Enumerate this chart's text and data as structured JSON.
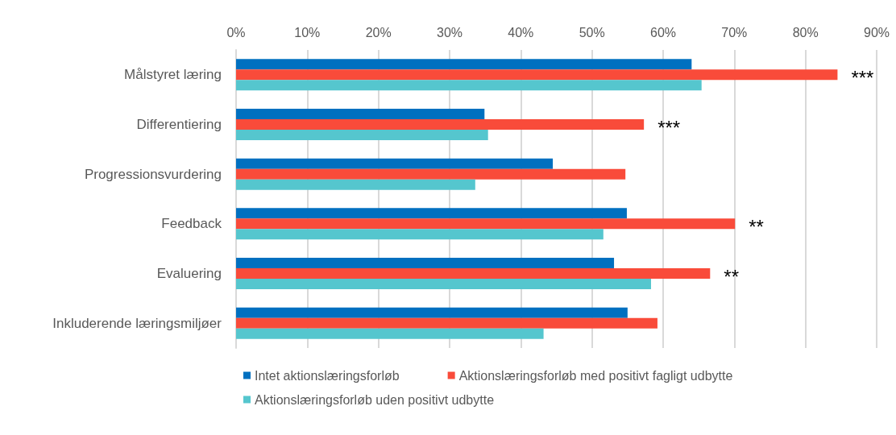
{
  "chart_data": {
    "type": "bar",
    "orientation": "horizontal",
    "categories": [
      "Målstyret læring",
      "Differentiering",
      "Progressionsvurdering",
      "Feedback",
      "Evaluering",
      "Inkluderende læringsmiljøer"
    ],
    "series": [
      {
        "name": "Intet aktionslæringsforløb",
        "color": "#0070c0",
        "values": [
          64,
          34.9,
          44.5,
          54.9,
          53.1,
          55.0
        ]
      },
      {
        "name": "Aktionslæringsforløb med positivt fagligt udbytte",
        "color": "#f94b3a",
        "values": [
          84.5,
          57.3,
          54.7,
          70.1,
          66.6,
          59.2
        ]
      },
      {
        "name": "Aktionslæringsforløb uden positivt udbytte",
        "color": "#55c6ce",
        "values": [
          65.4,
          35.4,
          33.6,
          51.6,
          58.3,
          43.2
        ]
      }
    ],
    "xlim": [
      0,
      90
    ],
    "xticks": [
      {
        "value": 0,
        "label": "0%"
      },
      {
        "value": 10,
        "label": "10%"
      },
      {
        "value": 20,
        "label": "20%"
      },
      {
        "value": 30,
        "label": "30%"
      },
      {
        "value": 40,
        "label": "40%"
      },
      {
        "value": 50,
        "label": "50%"
      },
      {
        "value": 60,
        "label": "60%"
      },
      {
        "value": 70,
        "label": "70%"
      },
      {
        "value": 80,
        "label": "80%"
      },
      {
        "value": 90,
        "label": "90%"
      }
    ],
    "grid": "x",
    "legend": "bottom",
    "annotations": [
      {
        "text": "***",
        "x": 84.5,
        "y": "Målstyret læring"
      },
      {
        "text": "***",
        "x": 57.3,
        "y": "Differentiering"
      },
      {
        "text": "**",
        "x": 70.1,
        "y": "Feedback"
      },
      {
        "text": "**",
        "x": 66.6,
        "y": "Evaluering"
      }
    ]
  }
}
